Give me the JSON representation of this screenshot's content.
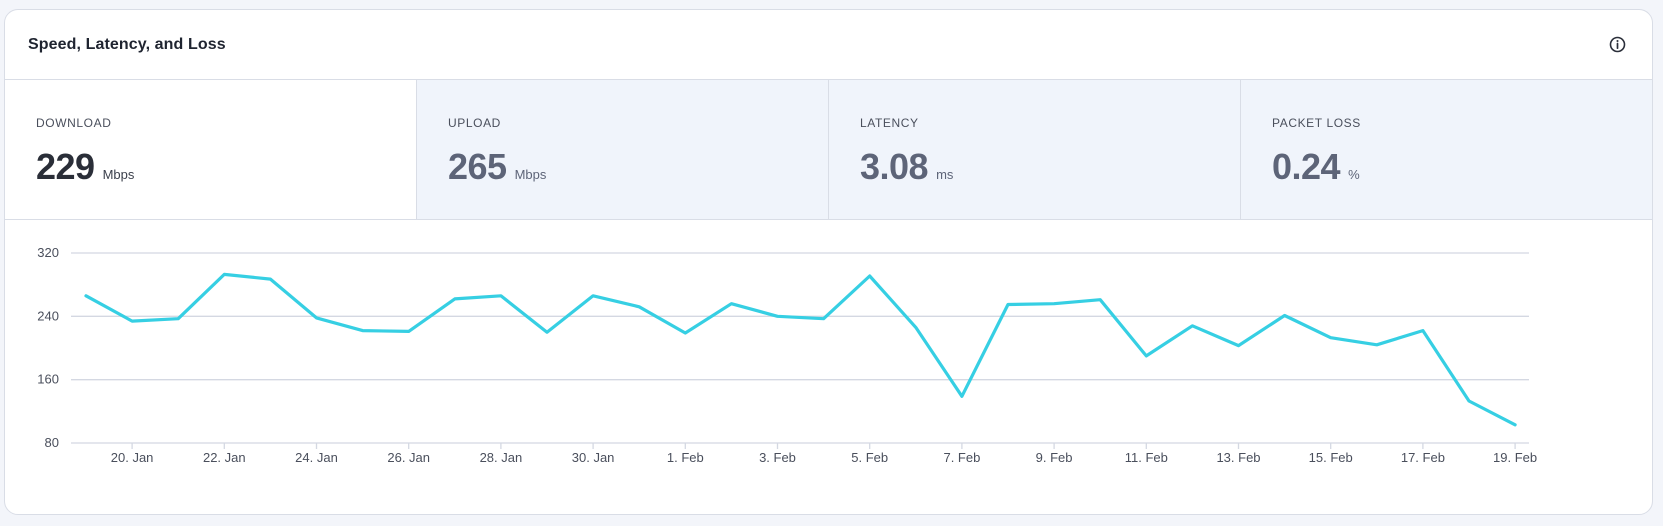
{
  "panel": {
    "title": "Speed, Latency, and Loss",
    "info_icon": "info-icon"
  },
  "metrics": [
    {
      "label": "DOWNLOAD",
      "value": "229",
      "unit": "Mbps",
      "selected": true
    },
    {
      "label": "UPLOAD",
      "value": "265",
      "unit": "Mbps",
      "selected": false
    },
    {
      "label": "LATENCY",
      "value": "3.08",
      "unit": "ms",
      "selected": false
    },
    {
      "label": "PACKET LOSS",
      "value": "0.24",
      "unit": "%",
      "selected": false
    }
  ],
  "colors": {
    "line": "#36cfe3",
    "grid": "#d4d8e2",
    "axis_text": "#4a4f5c"
  },
  "chart_data": {
    "type": "line",
    "title": "",
    "xlabel": "",
    "ylabel": "",
    "ylim": [
      80,
      320
    ],
    "yticks": [
      80,
      160,
      240,
      320
    ],
    "xticks": [
      {
        "day": 1,
        "label": "20. Jan"
      },
      {
        "day": 3,
        "label": "22. Jan"
      },
      {
        "day": 5,
        "label": "24. Jan"
      },
      {
        "day": 7,
        "label": "26. Jan"
      },
      {
        "day": 9,
        "label": "28. Jan"
      },
      {
        "day": 11,
        "label": "30. Jan"
      },
      {
        "day": 13,
        "label": "1. Feb"
      },
      {
        "day": 15,
        "label": "3. Feb"
      },
      {
        "day": 17,
        "label": "5. Feb"
      },
      {
        "day": 19,
        "label": "7. Feb"
      },
      {
        "day": 21,
        "label": "9. Feb"
      },
      {
        "day": 23,
        "label": "11. Feb"
      },
      {
        "day": 25,
        "label": "13. Feb"
      },
      {
        "day": 27,
        "label": "15. Feb"
      },
      {
        "day": 29,
        "label": "17. Feb"
      },
      {
        "day": 31,
        "label": "19. Feb"
      }
    ],
    "x": [
      "19. Jan",
      "20. Jan",
      "21. Jan",
      "22. Jan",
      "23. Jan",
      "24. Jan",
      "25. Jan",
      "26. Jan",
      "27. Jan",
      "28. Jan",
      "29. Jan",
      "30. Jan",
      "31. Jan",
      "1. Feb",
      "2. Feb",
      "3. Feb",
      "4. Feb",
      "5. Feb",
      "6. Feb",
      "7. Feb",
      "8. Feb",
      "9. Feb",
      "10. Feb",
      "11. Feb",
      "12. Feb",
      "13. Feb",
      "14. Feb",
      "15. Feb",
      "16. Feb",
      "17. Feb",
      "18. Feb",
      "19. Feb"
    ],
    "series": [
      {
        "values": [
          266,
          234,
          237,
          293,
          287,
          238,
          222,
          221,
          262,
          266,
          220,
          266,
          252,
          219,
          256,
          240,
          237,
          291,
          226,
          139,
          255,
          256,
          261,
          190,
          228,
          203,
          241,
          213,
          204,
          222,
          133,
          103
        ]
      }
    ]
  }
}
